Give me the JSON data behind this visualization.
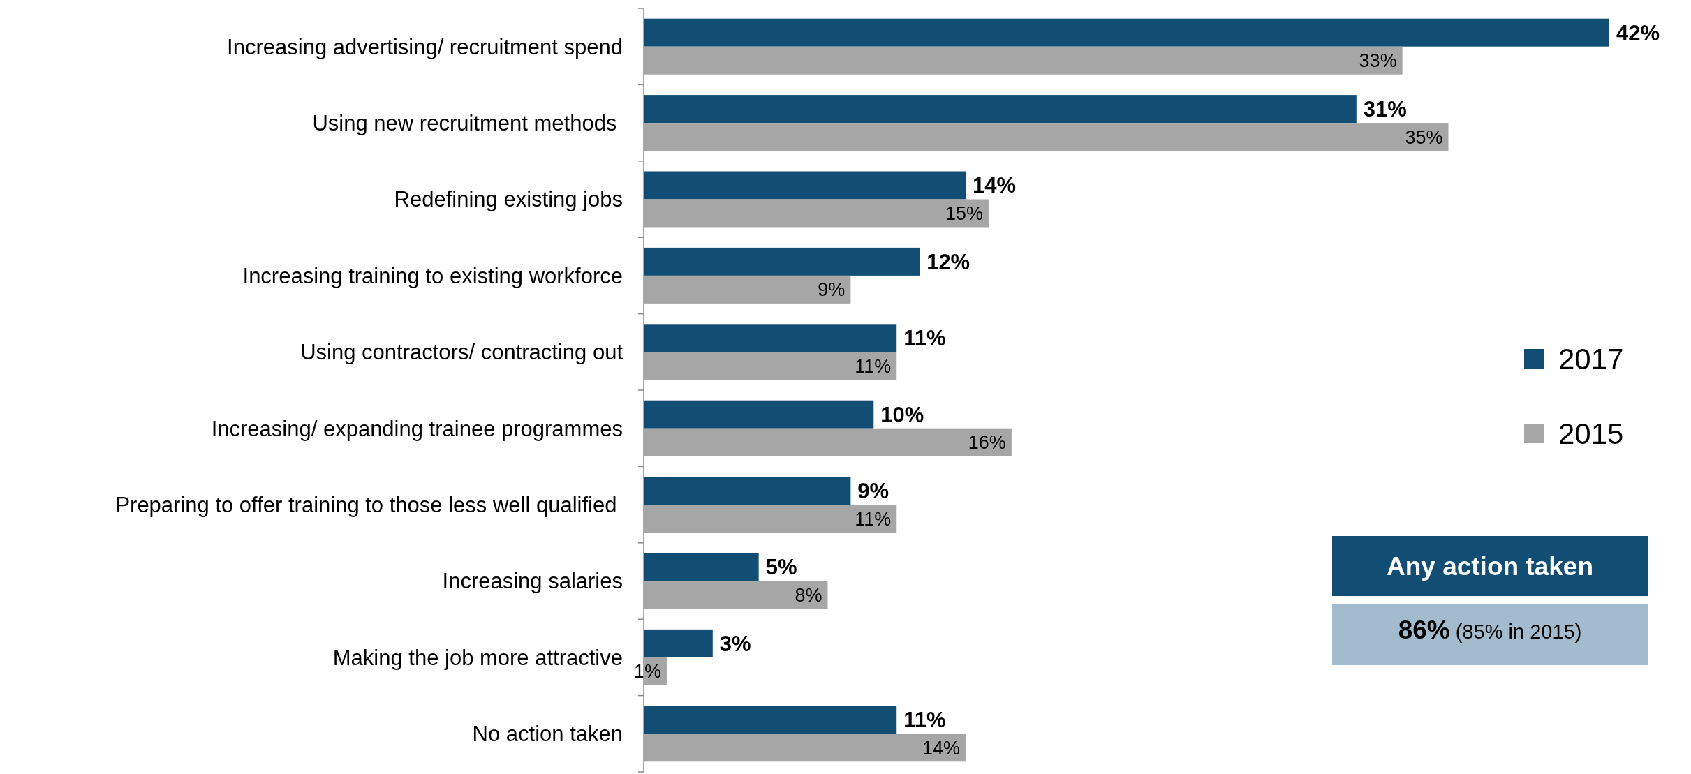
{
  "chart_data": {
    "type": "bar",
    "orientation": "horizontal",
    "categories": [
      "Increasing advertising/ recruitment spend",
      "Using new recruitment methods ",
      "Redefining existing jobs",
      "Increasing training to existing workforce",
      "Using contractors/ contracting out",
      "Increasing/ expanding trainee programmes",
      "Preparing to offer training to those less well qualified ",
      "Increasing salaries",
      "Making the job more attractive",
      "No action taken"
    ],
    "series": [
      {
        "name": "2017",
        "color": "#124e73",
        "values": [
          42,
          31,
          14,
          12,
          11,
          10,
          9,
          5,
          3,
          11
        ],
        "value_labels": [
          "42%",
          "31%",
          "14%",
          "12%",
          "11%",
          "10%",
          "9%",
          "5%",
          "3%",
          "11%"
        ]
      },
      {
        "name": "2015",
        "color": "#a6a6a6",
        "values": [
          33,
          35,
          15,
          9,
          11,
          16,
          11,
          8,
          1,
          14
        ],
        "value_labels": [
          "33%",
          "35%",
          "15%",
          "9%",
          "11%",
          "16%",
          "11%",
          "8%",
          "1%",
          "14%"
        ]
      }
    ],
    "legend": "right",
    "annotations": [
      "Any action taken",
      "86% (85% in 2015)"
    ]
  }
}
